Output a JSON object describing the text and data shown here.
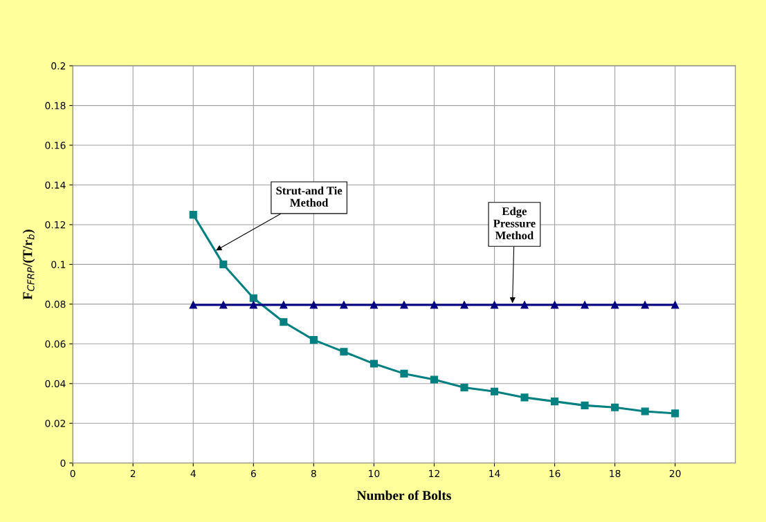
{
  "chart_data": {
    "type": "line",
    "xlabel": "Number of Bolts",
    "ylabel": "F$_{CFRP}$/(T/r$_{b}$)",
    "x": [
      4,
      5,
      6,
      7,
      8,
      9,
      10,
      11,
      12,
      13,
      14,
      15,
      16,
      17,
      18,
      19,
      20
    ],
    "series": [
      {
        "name": null,
        "color": "#008080",
        "marker": "square",
        "values": [
          0.125,
          0.1,
          0.083,
          0.071,
          0.062,
          0.056,
          0.05,
          0.045,
          0.042,
          0.038,
          0.036,
          0.033,
          0.031,
          0.029,
          0.028,
          0.026,
          0.025
        ]
      },
      {
        "name": null,
        "color": "#000080",
        "marker": "triangle",
        "values": [
          0.0796,
          0.0796,
          0.0796,
          0.0796,
          0.0796,
          0.0796,
          0.0796,
          0.0796,
          0.0796,
          0.0796,
          0.0796,
          0.0796,
          0.0796,
          0.0796,
          0.0796,
          0.0796,
          0.0796
        ]
      }
    ],
    "annotations": [
      {
        "text": "Strut-and Tie\nMethod",
        "x": 4.75,
        "y": 0.107
      },
      {
        "text": "Edge\nPressure\nMethod",
        "x": 14.6,
        "y": 0.0805
      }
    ],
    "xlim": [
      0,
      22
    ],
    "xticks": [
      0,
      2,
      4,
      6,
      8,
      10,
      12,
      14,
      16,
      18,
      20
    ],
    "ylim": [
      0,
      0.2
    ],
    "yticks": [
      0,
      0.02,
      0.04,
      0.06,
      0.08,
      0.1,
      0.12,
      0.14,
      0.16,
      0.18,
      0.2
    ],
    "grid": true,
    "legend": false
  }
}
